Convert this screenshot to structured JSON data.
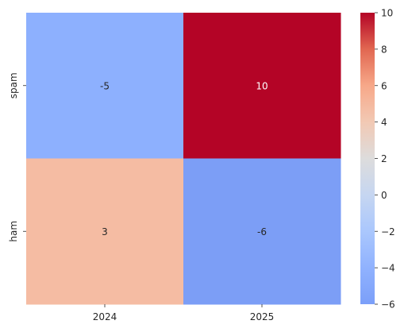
{
  "chart_data": {
    "type": "heatmap",
    "title": "",
    "xlabel": "",
    "ylabel": "",
    "x_categories": [
      "2024",
      "2025"
    ],
    "y_categories": [
      "spam",
      "ham"
    ],
    "values": [
      [
        -5,
        10
      ],
      [
        3,
        -6
      ]
    ],
    "annotations": [
      [
        "-5",
        "10"
      ],
      [
        "3",
        "-6"
      ]
    ],
    "colormap": "coolwarm",
    "center": 0,
    "colorbar": {
      "range": [
        -6,
        10
      ],
      "ticks": [
        -6,
        -4,
        -2,
        0,
        2,
        4,
        6,
        8,
        10
      ],
      "tick_labels": [
        "−6",
        "−4",
        "−2",
        "0",
        "2",
        "4",
        "6",
        "8",
        "10"
      ]
    }
  }
}
